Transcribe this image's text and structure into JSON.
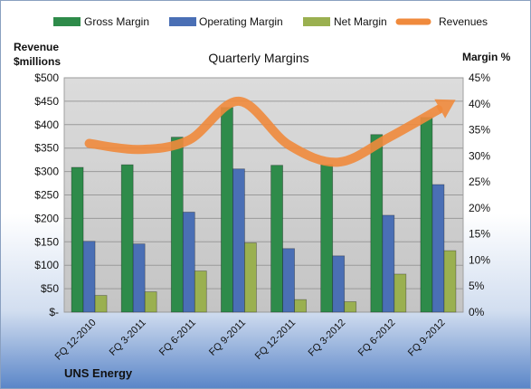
{
  "chart_data": {
    "type": "bar",
    "title": "Quarterly Margins",
    "ylabel_left": [
      "Revenue",
      "$millions"
    ],
    "ylabel_right": "Margin %",
    "footer": "UNS Energy",
    "categories": [
      "FQ 12-2010",
      "FQ 3-2011",
      "FQ 6-2011",
      "FQ 9-2011",
      "FQ 12-2011",
      "FQ 3-2012",
      "FQ 6-2012",
      "FQ 9-2012"
    ],
    "left_axis": {
      "min": 0,
      "max": 500,
      "step": 50,
      "ticks": [
        "$-",
        "$50",
        "$100",
        "$150",
        "$200",
        "$250",
        "$300",
        "$350",
        "$400",
        "$450",
        "$500"
      ]
    },
    "right_axis": {
      "min": 0,
      "max": 45,
      "step": 5,
      "ticks": [
        "0%",
        "5%",
        "10%",
        "15%",
        "20%",
        "25%",
        "30%",
        "35%",
        "40%",
        "45%"
      ]
    },
    "series": [
      {
        "name": "Gross Margin",
        "type": "bar",
        "axis": "right",
        "color": "#2e8b4a",
        "values": [
          27.8,
          28.3,
          33.6,
          39.3,
          28.2,
          28.3,
          34.1,
          37.4
        ]
      },
      {
        "name": "Operating Margin",
        "type": "bar",
        "axis": "right",
        "color": "#4a6fb5",
        "values": [
          13.6,
          13.1,
          19.2,
          27.5,
          12.2,
          10.8,
          18.6,
          24.5
        ]
      },
      {
        "name": "Net Margin",
        "type": "bar",
        "axis": "right",
        "color": "#9ab050",
        "values": [
          3.2,
          3.9,
          7.9,
          13.3,
          2.4,
          2.0,
          7.3,
          11.8
        ]
      },
      {
        "name": "Revenues",
        "type": "line",
        "axis": "left",
        "color": "#f08a3c",
        "values": [
          360,
          347,
          367,
          450,
          357,
          320,
          372,
          432
        ]
      }
    ],
    "grid": true,
    "legend_position": "top"
  }
}
